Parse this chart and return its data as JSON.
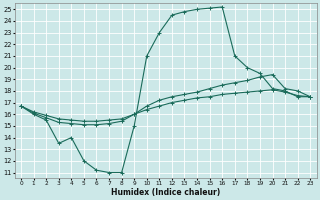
{
  "xlabel": "Humidex (Indice chaleur)",
  "xlim": [
    -0.5,
    23.5
  ],
  "ylim": [
    10.5,
    25.5
  ],
  "xticks": [
    0,
    1,
    2,
    3,
    4,
    5,
    6,
    7,
    8,
    9,
    10,
    11,
    12,
    13,
    14,
    15,
    16,
    17,
    18,
    19,
    20,
    21,
    22,
    23
  ],
  "yticks": [
    11,
    12,
    13,
    14,
    15,
    16,
    17,
    18,
    19,
    20,
    21,
    22,
    23,
    24,
    25
  ],
  "bg_color": "#cce8e8",
  "line_color": "#1a6b5a",
  "grid_color": "#b8d8d8",
  "line1_x": [
    0,
    1,
    2,
    3,
    4,
    5,
    6,
    7,
    8,
    9,
    10,
    11,
    12,
    13,
    14,
    15,
    16,
    17,
    18,
    19,
    20,
    21,
    22,
    23
  ],
  "line1_y": [
    16.7,
    16.0,
    15.5,
    13.5,
    14.0,
    12.0,
    11.2,
    11.0,
    11.0,
    15.0,
    21.0,
    23.0,
    24.5,
    24.8,
    25.0,
    25.1,
    25.2,
    21.0,
    20.0,
    19.5,
    18.2,
    18.0,
    17.5,
    17.5
  ],
  "line2_x": [
    0,
    1,
    2,
    3,
    4,
    5,
    6,
    7,
    8,
    9,
    10,
    11,
    12,
    13,
    14,
    15,
    16,
    17,
    18,
    19,
    20,
    21,
    22,
    23
  ],
  "line2_y": [
    16.7,
    16.1,
    15.7,
    15.3,
    15.2,
    15.1,
    15.1,
    15.2,
    15.4,
    16.0,
    16.7,
    17.2,
    17.5,
    17.7,
    17.9,
    18.2,
    18.5,
    18.7,
    18.9,
    19.2,
    19.4,
    18.2,
    18.0,
    17.5
  ],
  "line3_x": [
    0,
    1,
    2,
    3,
    4,
    5,
    6,
    7,
    8,
    9,
    10,
    11,
    12,
    13,
    14,
    15,
    16,
    17,
    18,
    19,
    20,
    21,
    22,
    23
  ],
  "line3_y": [
    16.7,
    16.2,
    15.9,
    15.6,
    15.5,
    15.4,
    15.4,
    15.5,
    15.6,
    16.0,
    16.4,
    16.7,
    17.0,
    17.2,
    17.4,
    17.5,
    17.7,
    17.8,
    17.9,
    18.0,
    18.1,
    17.9,
    17.6,
    17.5
  ]
}
